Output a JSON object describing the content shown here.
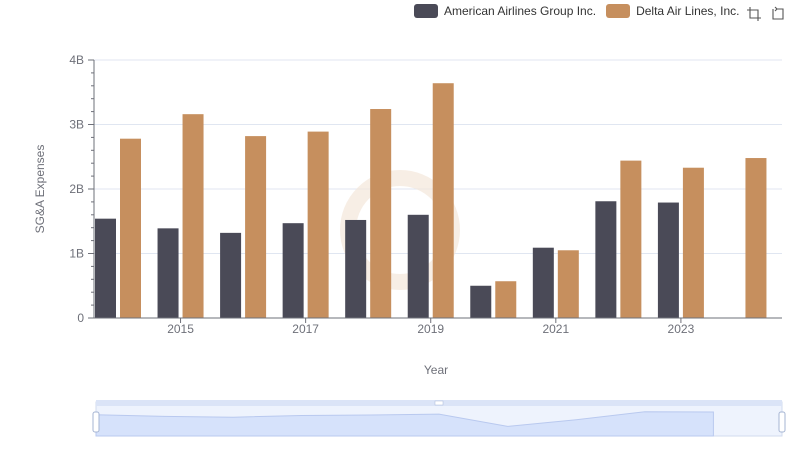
{
  "chart_data": {
    "type": "bar",
    "xlabel": "Year",
    "ylabel": "SG&A Expenses",
    "ylim": [
      0,
      4000000000
    ],
    "y_ticks": [
      "0",
      "1B",
      "2B",
      "3B",
      "4B"
    ],
    "x_ticks": [
      "2015",
      "2017",
      "2019",
      "2021",
      "2023"
    ],
    "categories": [
      "2014",
      "2015",
      "2016",
      "2017",
      "2018",
      "2019",
      "2020",
      "2021",
      "2022",
      "2023",
      "2024"
    ],
    "series": [
      {
        "name": "American Airlines Group Inc.",
        "color": "#4a4a57",
        "values": [
          1540000000,
          1390000000,
          1320000000,
          1470000000,
          1520000000,
          1600000000,
          500000000,
          1090000000,
          1810000000,
          1790000000,
          null
        ]
      },
      {
        "name": "Delta Air Lines, Inc.",
        "color": "#c68f5e",
        "values": [
          2780000000,
          3160000000,
          2820000000,
          2890000000,
          3240000000,
          3640000000,
          570000000,
          1050000000,
          2440000000,
          2330000000,
          2480000000
        ]
      }
    ],
    "grid": true,
    "legend_position": "top-right"
  },
  "toolbox": {
    "zoom_icon": "data-zoom-icon",
    "restore_icon": "restore-icon"
  },
  "colors": {
    "axis": "#6e7079",
    "grid": "#e0e6f1",
    "slider_fill": "#d6e2fb",
    "slider_border": "#d2dbee"
  }
}
